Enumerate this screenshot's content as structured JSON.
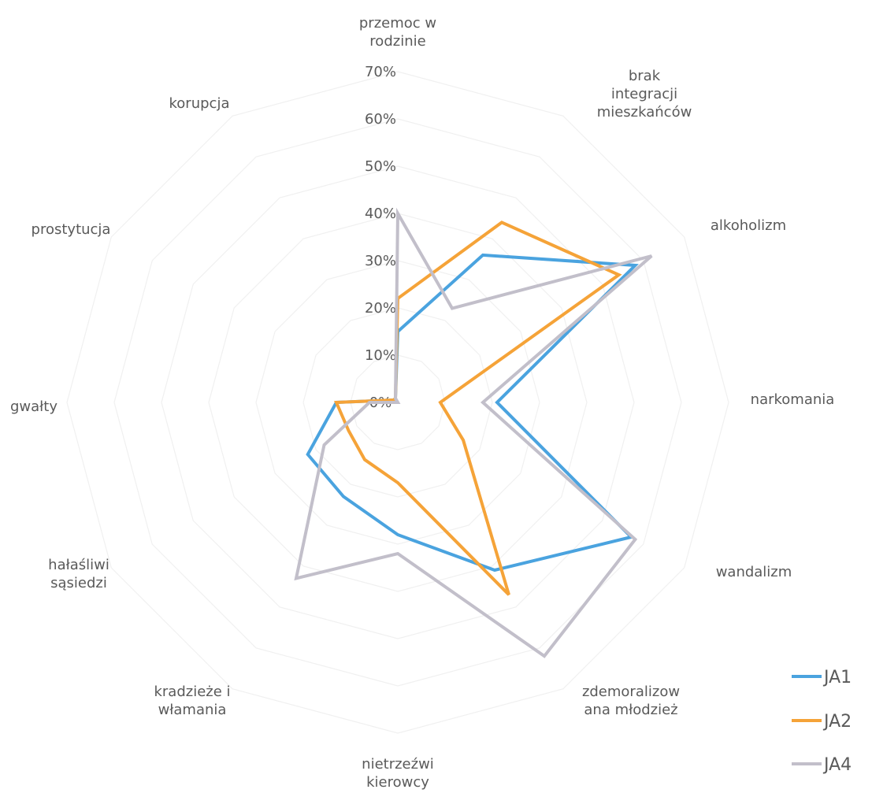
{
  "chart_data": {
    "type": "radar",
    "title": "",
    "categories": [
      [
        "przemoc w",
        "rodzinie"
      ],
      [
        "brak",
        "integracji",
        "mieszkańców"
      ],
      [
        "alkoholizm"
      ],
      [
        "narkomania"
      ],
      [
        "wandalizm"
      ],
      [
        "zdemoralizow",
        "ana młodzież"
      ],
      [
        "nietrzeźwi",
        "kierowcy"
      ],
      [
        "kradzieże i",
        "włamania"
      ],
      [
        "hałaśliwi",
        "sąsiedzi"
      ],
      [
        "gwałty"
      ],
      [
        "prostytucja"
      ],
      [
        "korupcja"
      ]
    ],
    "r_ticks": [
      "0%",
      "10%",
      "20%",
      "30%",
      "40%",
      "50%",
      "60%",
      "70%"
    ],
    "r_max": 70,
    "grid": true,
    "legend_position": "bottom-right",
    "series": [
      {
        "name": "JA1",
        "color": "#4aa3df",
        "values": [
          15,
          36,
          58,
          21,
          57,
          41,
          28,
          23,
          22,
          13,
          1,
          1
        ]
      },
      {
        "name": "JA2",
        "color": "#f5a338",
        "values": [
          22,
          44,
          54,
          9,
          16,
          47,
          17,
          14,
          12,
          13,
          1,
          1
        ]
      },
      {
        "name": "JA4",
        "color": "#c2bfca",
        "values": [
          40,
          23,
          62,
          18,
          58,
          62,
          32,
          43,
          18,
          6,
          0,
          1
        ]
      }
    ]
  }
}
